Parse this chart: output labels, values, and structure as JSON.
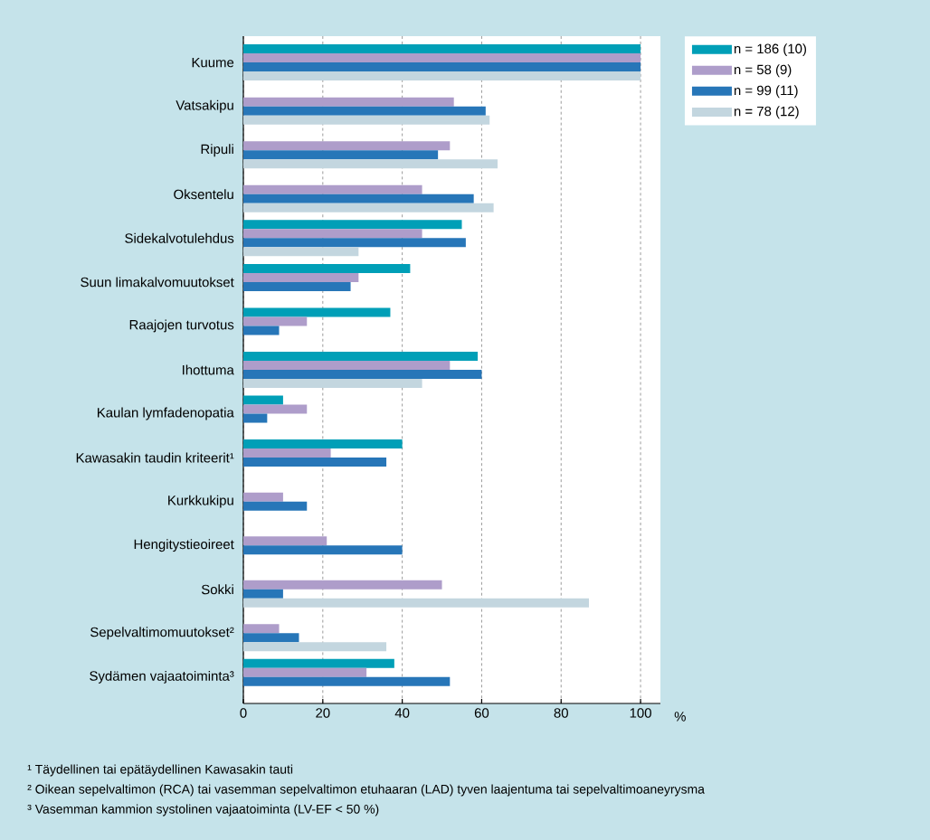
{
  "chart_data": {
    "type": "bar",
    "orientation": "horizontal",
    "categories": [
      "Kuume",
      "Vatsakipu",
      "Ripuli",
      "Oksentelu",
      "Sidekalvotulehdus",
      "Suun limakalvomuutokset",
      "Raajojen turvotus",
      "Ihottuma",
      "Kaulan lymfadenopatia",
      "Kawasakin taudin kriteerit¹",
      "Kurkkukipu",
      "Hengitystieoireet",
      "Sokki",
      "Sepelvaltimomuutokset²",
      "Sydämen vajaatoiminta³"
    ],
    "series": [
      {
        "name": "n = 186 (10)",
        "color": "#009fb7",
        "values": [
          100,
          null,
          null,
          null,
          55,
          42,
          37,
          59,
          10,
          40,
          null,
          null,
          null,
          null,
          38
        ]
      },
      {
        "name": "n = 58 (9)",
        "color": "#ae9dca",
        "values": [
          100,
          53,
          52,
          45,
          45,
          29,
          16,
          52,
          16,
          22,
          10,
          21,
          50,
          9,
          31
        ]
      },
      {
        "name": "n = 99 (11)",
        "color": "#2776b8",
        "values": [
          100,
          61,
          49,
          58,
          56,
          27,
          9,
          60,
          6,
          36,
          16,
          40,
          10,
          14,
          52
        ]
      },
      {
        "name": "n = 78 (12)",
        "color": "#c3d6df",
        "values": [
          100,
          62,
          64,
          63,
          29,
          null,
          null,
          45,
          null,
          null,
          null,
          null,
          87,
          36,
          null
        ]
      }
    ],
    "xlabel": "%",
    "xlim": [
      0,
      105
    ],
    "xticks": [
      0,
      20,
      40,
      60,
      80,
      100
    ],
    "grid": "x",
    "legend": "top right",
    "annotations": [
      "¹ Täydellinen tai epätäydellinen Kawasakin tauti",
      "² Oikean sepelvaltimon (RCA) tai vasemman sepelvaltimon etuhaaran (LAD) tyven laajentuma tai sepelvaltimoaneyrysma",
      "³ Vasemman kammion systolinen vajaatoiminta (LV-EF < 50 %)"
    ]
  }
}
